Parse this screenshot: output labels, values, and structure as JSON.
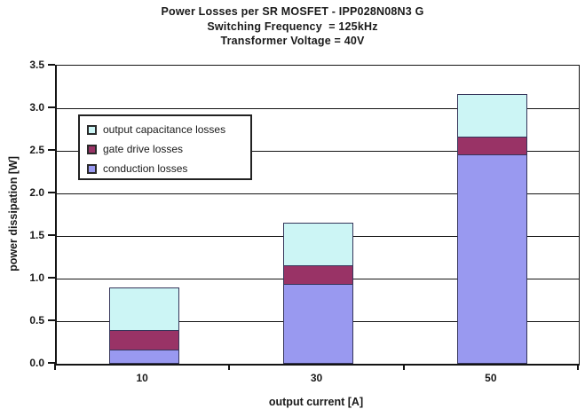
{
  "title": {
    "line1": "Power Losses per SR MOSFET - IPP028N08N3 G",
    "line2": "Switching Frequency  = 125kHz",
    "line3": "Transformer Voltage = 40V"
  },
  "axes": {
    "x_label": "output current [A]",
    "y_label": "power dissipation [W]"
  },
  "legend": {
    "items": [
      {
        "label": "output capacitance losses",
        "color": "#CCF5F5"
      },
      {
        "label": "gate drive losses",
        "color": "#993366"
      },
      {
        "label": "conduction losses",
        "color": "#9999F0"
      }
    ]
  },
  "chart_data": {
    "type": "bar",
    "stacked": true,
    "title": "Power Losses per SR MOSFET - IPP028N08N3 G / Switching Frequency = 125kHz / Transformer Voltage = 40V",
    "xlabel": "output current [A]",
    "ylabel": "power dissipation [W]",
    "categories": [
      "10",
      "30",
      "50"
    ],
    "series": [
      {
        "name": "conduction losses",
        "color": "#9999F0",
        "values": [
          0.16,
          0.93,
          2.45
        ]
      },
      {
        "name": "gate drive losses",
        "color": "#993366",
        "values": [
          0.23,
          0.22,
          0.21
        ]
      },
      {
        "name": "output capacitance losses",
        "color": "#CCF5F5",
        "values": [
          0.5,
          0.5,
          0.5
        ]
      }
    ],
    "stack_totals": [
      0.89,
      1.65,
      3.16
    ],
    "ylim": [
      0,
      3.5
    ],
    "ytick_step": 0.5,
    "ytick_labels": [
      "0.0",
      "0.5",
      "1.0",
      "1.5",
      "2.0",
      "2.5",
      "3.0",
      "3.5"
    ],
    "grid": true,
    "legend_position": "inside upper-left"
  }
}
